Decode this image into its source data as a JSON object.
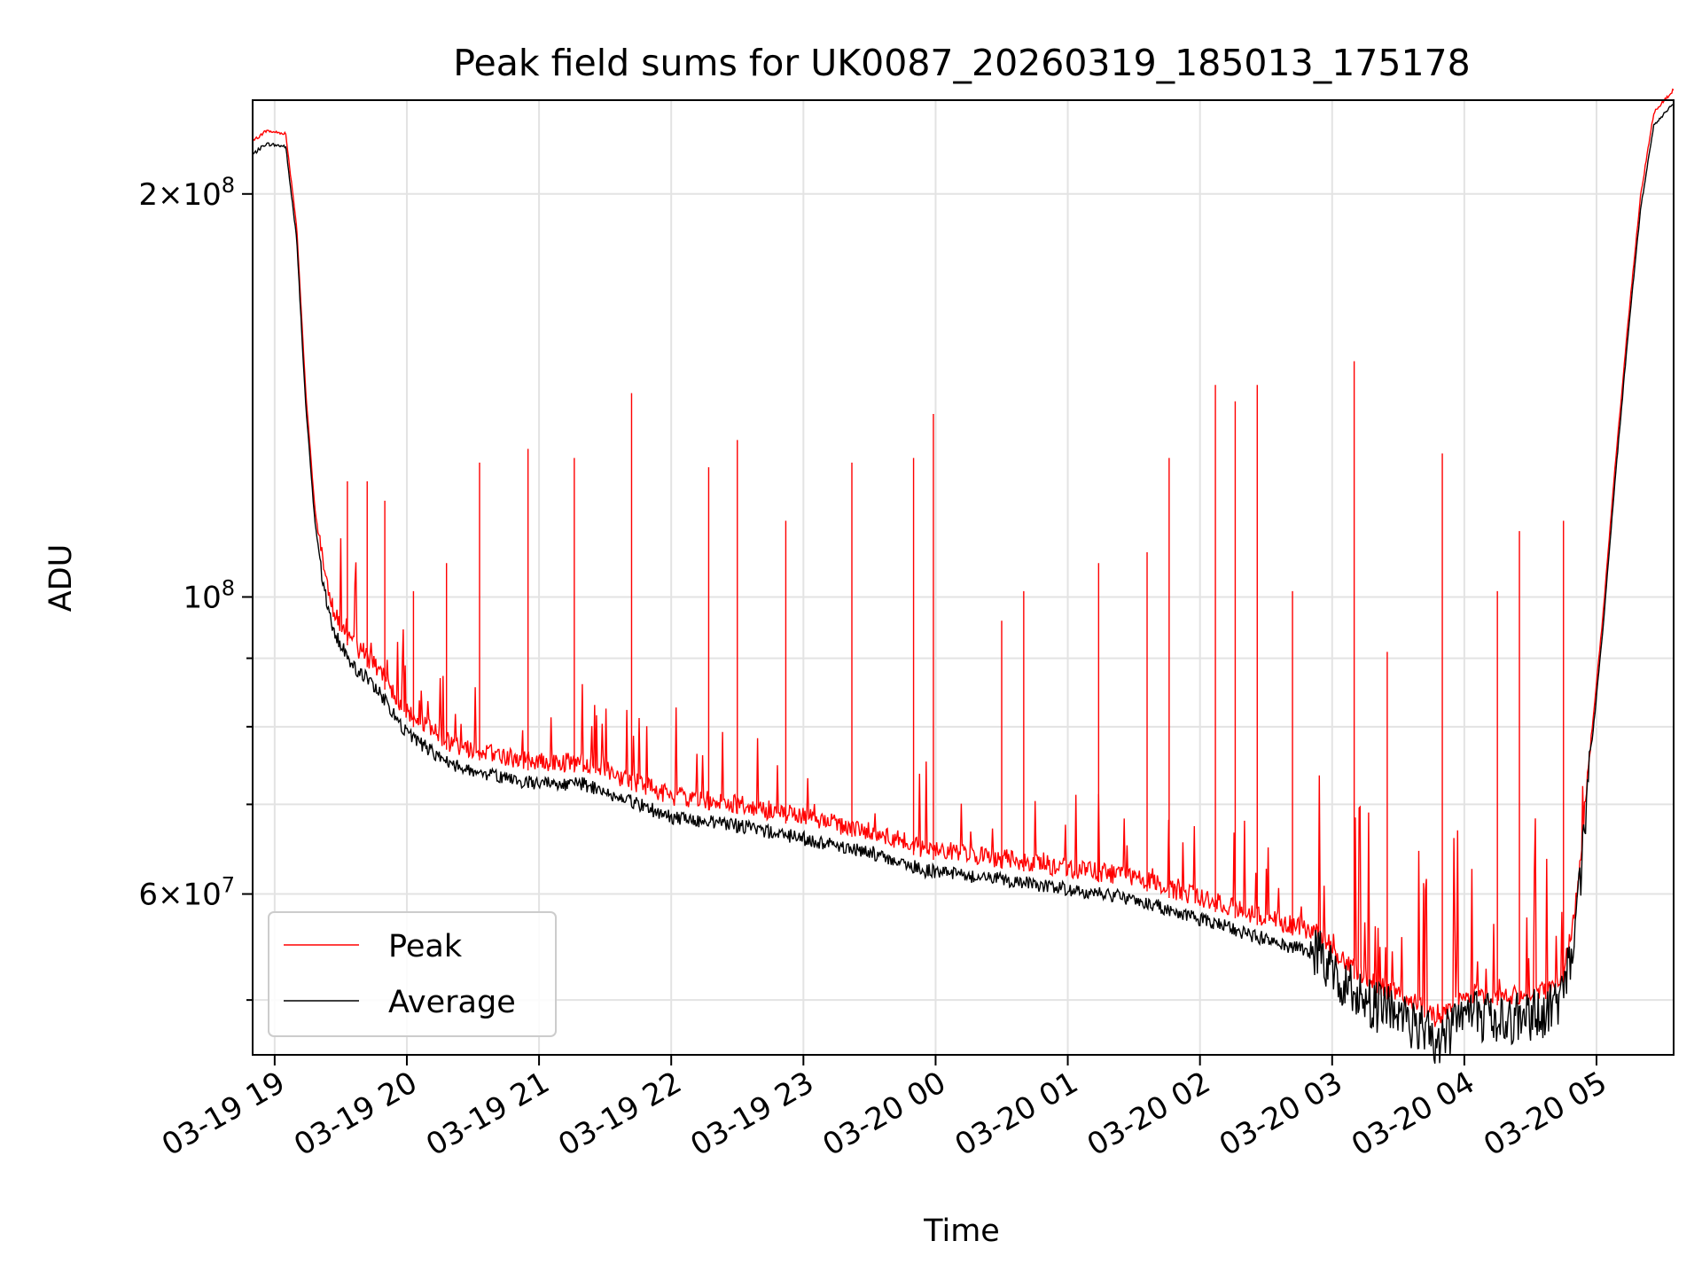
{
  "chart_data": {
    "type": "line",
    "title": "Peak field sums for UK0087_20260319_185013_175178",
    "xlabel": "Time",
    "ylabel": "ADU",
    "x_range": [
      "2026-03-19T18:50",
      "2026-03-20T05:35"
    ],
    "ylim": [
      45500000,
      235000000
    ],
    "y_scale": "log",
    "grid": true,
    "legend_position": "lower left",
    "x_ticks": [
      {
        "label": "03-19 19",
        "value": "2026-03-19T19:00"
      },
      {
        "label": "03-19 20",
        "value": "2026-03-19T20:00"
      },
      {
        "label": "03-19 21",
        "value": "2026-03-19T21:00"
      },
      {
        "label": "03-19 22",
        "value": "2026-03-19T22:00"
      },
      {
        "label": "03-19 23",
        "value": "2026-03-19T23:00"
      },
      {
        "label": "03-20 00",
        "value": "2026-03-20T00:00"
      },
      {
        "label": "03-20 01",
        "value": "2026-03-20T01:00"
      },
      {
        "label": "03-20 02",
        "value": "2026-03-20T02:00"
      },
      {
        "label": "03-20 03",
        "value": "2026-03-20T03:00"
      },
      {
        "label": "03-20 04",
        "value": "2026-03-20T04:00"
      },
      {
        "label": "03-20 05",
        "value": "2026-03-20T05:00"
      }
    ],
    "y_ticks": [
      {
        "mant": "6",
        "exp": "7",
        "value": 60000000
      },
      {
        "mant": "",
        "exp": "8",
        "value": 100000000
      },
      {
        "mant": "2",
        "exp": "8",
        "value": 200000000
      }
    ],
    "y_minor_ticks": [
      50000000,
      70000000,
      80000000,
      90000000
    ],
    "series": [
      {
        "name": "Average",
        "color": "#000000",
        "x": [
          "2026-03-19T18:50",
          "2026-03-19T18:56",
          "2026-03-19T19:05",
          "2026-03-19T19:10",
          "2026-03-19T19:14",
          "2026-03-19T19:18",
          "2026-03-19T19:22",
          "2026-03-19T19:27",
          "2026-03-19T19:35",
          "2026-03-19T19:45",
          "2026-03-19T20:00",
          "2026-03-19T20:20",
          "2026-03-19T20:40",
          "2026-03-19T21:00",
          "2026-03-19T21:20",
          "2026-03-19T21:40",
          "2026-03-19T22:00",
          "2026-03-19T22:30",
          "2026-03-19T23:00",
          "2026-03-19T23:30",
          "2026-03-19T23:55",
          "2026-03-20T00:30",
          "2026-03-20T01:00",
          "2026-03-20T01:30",
          "2026-03-20T02:00",
          "2026-03-20T02:30",
          "2026-03-20T02:55",
          "2026-03-20T03:05",
          "2026-03-20T03:20",
          "2026-03-20T03:40",
          "2026-03-20T03:48",
          "2026-03-20T04:00",
          "2026-03-20T04:20",
          "2026-03-20T04:38",
          "2026-03-20T04:45",
          "2026-03-20T04:50",
          "2026-03-20T04:54",
          "2026-03-20T04:58",
          "2026-03-20T05:03",
          "2026-03-20T05:08",
          "2026-03-20T05:14",
          "2026-03-20T05:20",
          "2026-03-20T05:26",
          "2026-03-20T05:35"
        ],
        "values": [
          214000000,
          218000000,
          217000000,
          185000000,
          140000000,
          115000000,
          102000000,
          94000000,
          89000000,
          86000000,
          79000000,
          75000000,
          73500000,
          72500000,
          72500000,
          70500000,
          68500000,
          67500000,
          66000000,
          64500000,
          62500000,
          61500000,
          60500000,
          59500000,
          57500000,
          55500000,
          54000000,
          51500000,
          49500000,
          47800000,
          46500000,
          48800000,
          48500000,
          49000000,
          50500000,
          56000000,
          65000000,
          78000000,
          95000000,
          120000000,
          155000000,
          195000000,
          225000000,
          234000000
        ]
      },
      {
        "name": "Peak",
        "color": "#ff0000",
        "spikes": [
          {
            "x": "2026-03-19T19:33",
            "y": 122000000
          },
          {
            "x": "2026-03-19T19:42",
            "y": 122000000
          },
          {
            "x": "2026-03-19T19:50",
            "y": 118000000
          },
          {
            "x": "2026-03-19T20:03",
            "y": 101000000
          },
          {
            "x": "2026-03-19T20:18",
            "y": 106000000
          },
          {
            "x": "2026-03-19T20:33",
            "y": 126000000
          },
          {
            "x": "2026-03-19T20:55",
            "y": 129000000
          },
          {
            "x": "2026-03-19T21:16",
            "y": 127000000
          },
          {
            "x": "2026-03-19T21:42",
            "y": 142000000
          },
          {
            "x": "2026-03-19T22:17",
            "y": 125000000
          },
          {
            "x": "2026-03-19T22:30",
            "y": 131000000
          },
          {
            "x": "2026-03-19T22:52",
            "y": 114000000
          },
          {
            "x": "2026-03-19T23:22",
            "y": 126000000
          },
          {
            "x": "2026-03-19T23:50",
            "y": 127000000
          },
          {
            "x": "2026-03-19T23:59",
            "y": 137000000
          },
          {
            "x": "2026-03-20T00:30",
            "y": 96000000
          },
          {
            "x": "2026-03-20T00:40",
            "y": 101000000
          },
          {
            "x": "2026-03-20T01:14",
            "y": 106000000
          },
          {
            "x": "2026-03-20T01:36",
            "y": 108000000
          },
          {
            "x": "2026-03-20T01:46",
            "y": 127000000
          },
          {
            "x": "2026-03-20T02:07",
            "y": 144000000
          },
          {
            "x": "2026-03-20T02:16",
            "y": 140000000
          },
          {
            "x": "2026-03-20T02:26",
            "y": 144000000
          },
          {
            "x": "2026-03-20T02:42",
            "y": 101000000
          },
          {
            "x": "2026-03-20T03:10",
            "y": 150000000
          },
          {
            "x": "2026-03-20T03:25",
            "y": 91000000
          },
          {
            "x": "2026-03-20T03:50",
            "y": 128000000
          },
          {
            "x": "2026-03-20T04:15",
            "y": 101000000
          },
          {
            "x": "2026-03-20T04:25",
            "y": 112000000
          },
          {
            "x": "2026-03-20T04:45",
            "y": 114000000
          }
        ]
      }
    ]
  }
}
